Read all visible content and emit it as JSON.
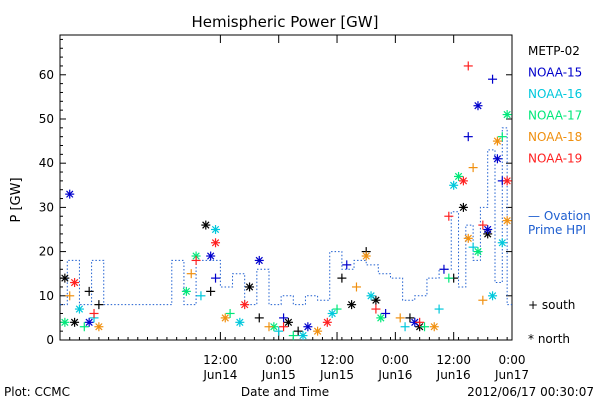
{
  "chart_data": {
    "type": "scatter",
    "title": "Hemispheric Power [GW]",
    "xlabel": "Date and Time",
    "ylabel": "P [GW]",
    "ylim": [
      0,
      69
    ],
    "xlim": [
      "2012-06-13 03:00",
      "2012-06-17 00:00"
    ],
    "grid": false,
    "legend_position": "right",
    "y_ticks": [
      0,
      10,
      20,
      30,
      40,
      50,
      60
    ],
    "x_ticks": [
      {
        "at": "2012-06-14 12:00",
        "time": "12:00",
        "date": "Jun14"
      },
      {
        "at": "2012-06-15 00:00",
        "time": "0:00",
        "date": "Jun15"
      },
      {
        "at": "2012-06-15 12:00",
        "time": "12:00",
        "date": "Jun15"
      },
      {
        "at": "2012-06-16 00:00",
        "time": "0:00",
        "date": "Jun16"
      },
      {
        "at": "2012-06-16 12:00",
        "time": "12:00",
        "date": "Jun16"
      },
      {
        "at": "2012-06-17 00:00",
        "time": "0:00",
        "date": "Jun17"
      }
    ],
    "series": [
      {
        "name": "METP-02",
        "color": "#000000",
        "points": [
          {
            "x": "2012-06-13 04:00",
            "y": 14,
            "hem": "north"
          },
          {
            "x": "2012-06-13 06:00",
            "y": 4,
            "hem": "north"
          },
          {
            "x": "2012-06-13 09:00",
            "y": 11,
            "hem": "south"
          },
          {
            "x": "2012-06-13 11:00",
            "y": 8,
            "hem": "south"
          },
          {
            "x": "2012-06-14 09:00",
            "y": 26,
            "hem": "north"
          },
          {
            "x": "2012-06-14 10:00",
            "y": 11,
            "hem": "south"
          },
          {
            "x": "2012-06-14 18:00",
            "y": 12,
            "hem": "north"
          },
          {
            "x": "2012-06-14 20:00",
            "y": 5,
            "hem": "south"
          },
          {
            "x": "2012-06-15 02:00",
            "y": 4,
            "hem": "north"
          },
          {
            "x": "2012-06-15 04:00",
            "y": 2,
            "hem": "south"
          },
          {
            "x": "2012-06-15 13:00",
            "y": 14,
            "hem": "south"
          },
          {
            "x": "2012-06-15 15:00",
            "y": 8,
            "hem": "north"
          },
          {
            "x": "2012-06-15 18:00",
            "y": 20,
            "hem": "south"
          },
          {
            "x": "2012-06-15 20:00",
            "y": 9,
            "hem": "north"
          },
          {
            "x": "2012-06-16 03:00",
            "y": 5,
            "hem": "south"
          },
          {
            "x": "2012-06-16 05:00",
            "y": 3,
            "hem": "north"
          },
          {
            "x": "2012-06-16 12:00",
            "y": 14,
            "hem": "south"
          },
          {
            "x": "2012-06-16 14:00",
            "y": 30,
            "hem": "north"
          },
          {
            "x": "2012-06-16 19:00",
            "y": 24,
            "hem": "north"
          }
        ]
      },
      {
        "name": "NOAA-15",
        "color": "#0000cc",
        "points": [
          {
            "x": "2012-06-13 05:00",
            "y": 33,
            "hem": "north"
          },
          {
            "x": "2012-06-13 09:00",
            "y": 4,
            "hem": "north"
          },
          {
            "x": "2012-06-14 10:00",
            "y": 19,
            "hem": "north"
          },
          {
            "x": "2012-06-14 11:00",
            "y": 14,
            "hem": "south"
          },
          {
            "x": "2012-06-14 20:00",
            "y": 18,
            "hem": "north"
          },
          {
            "x": "2012-06-15 01:00",
            "y": 5,
            "hem": "south"
          },
          {
            "x": "2012-06-15 06:00",
            "y": 3,
            "hem": "north"
          },
          {
            "x": "2012-06-15 14:00",
            "y": 17,
            "hem": "south"
          },
          {
            "x": "2012-06-15 22:00",
            "y": 6,
            "hem": "south"
          },
          {
            "x": "2012-06-16 04:00",
            "y": 4,
            "hem": "north"
          },
          {
            "x": "2012-06-16 10:00",
            "y": 16,
            "hem": "south"
          },
          {
            "x": "2012-06-16 15:00",
            "y": 46,
            "hem": "south"
          },
          {
            "x": "2012-06-16 17:00",
            "y": 53,
            "hem": "north"
          },
          {
            "x": "2012-06-16 19:00",
            "y": 25,
            "hem": "north"
          },
          {
            "x": "2012-06-16 20:00",
            "y": 59,
            "hem": "south"
          },
          {
            "x": "2012-06-16 21:00",
            "y": 41,
            "hem": "north"
          },
          {
            "x": "2012-06-16 22:00",
            "y": 36,
            "hem": "south"
          }
        ]
      },
      {
        "name": "NOAA-16",
        "color": "#00c8dc",
        "points": [
          {
            "x": "2012-06-13 07:00",
            "y": 7,
            "hem": "north"
          },
          {
            "x": "2012-06-13 10:00",
            "y": 5,
            "hem": "south"
          },
          {
            "x": "2012-06-14 08:00",
            "y": 10,
            "hem": "south"
          },
          {
            "x": "2012-06-14 11:00",
            "y": 25,
            "hem": "north"
          },
          {
            "x": "2012-06-14 16:00",
            "y": 4,
            "hem": "north"
          },
          {
            "x": "2012-06-15 00:00",
            "y": 2,
            "hem": "south"
          },
          {
            "x": "2012-06-15 05:00",
            "y": 1,
            "hem": "north"
          },
          {
            "x": "2012-06-15 11:00",
            "y": 6,
            "hem": "north"
          },
          {
            "x": "2012-06-15 19:00",
            "y": 10,
            "hem": "north"
          },
          {
            "x": "2012-06-16 02:00",
            "y": 3,
            "hem": "south"
          },
          {
            "x": "2012-06-16 09:00",
            "y": 7,
            "hem": "south"
          },
          {
            "x": "2012-06-16 12:00",
            "y": 35,
            "hem": "north"
          },
          {
            "x": "2012-06-16 16:00",
            "y": 21,
            "hem": "south"
          },
          {
            "x": "2012-06-16 20:00",
            "y": 10,
            "hem": "north"
          },
          {
            "x": "2012-06-16 22:00",
            "y": 22,
            "hem": "north"
          }
        ]
      },
      {
        "name": "NOAA-17",
        "color": "#00e87a",
        "points": [
          {
            "x": "2012-06-13 04:00",
            "y": 4,
            "hem": "north"
          },
          {
            "x": "2012-06-13 08:00",
            "y": 3,
            "hem": "south"
          },
          {
            "x": "2012-06-14 05:00",
            "y": 11,
            "hem": "north"
          },
          {
            "x": "2012-06-14 07:00",
            "y": 19,
            "hem": "north"
          },
          {
            "x": "2012-06-14 14:00",
            "y": 6,
            "hem": "south"
          },
          {
            "x": "2012-06-14 23:00",
            "y": 3,
            "hem": "north"
          },
          {
            "x": "2012-06-15 03:00",
            "y": 1,
            "hem": "south"
          },
          {
            "x": "2012-06-15 12:00",
            "y": 7,
            "hem": "south"
          },
          {
            "x": "2012-06-15 21:00",
            "y": 5,
            "hem": "north"
          },
          {
            "x": "2012-06-16 06:00",
            "y": 3,
            "hem": "south"
          },
          {
            "x": "2012-06-16 11:00",
            "y": 14,
            "hem": "south"
          },
          {
            "x": "2012-06-16 13:00",
            "y": 37,
            "hem": "north"
          },
          {
            "x": "2012-06-16 17:00",
            "y": 20,
            "hem": "north"
          },
          {
            "x": "2012-06-16 22:00",
            "y": 46,
            "hem": "south"
          },
          {
            "x": "2012-06-16 23:00",
            "y": 51,
            "hem": "north"
          }
        ]
      },
      {
        "name": "NOAA-18",
        "color": "#f09010",
        "points": [
          {
            "x": "2012-06-13 05:00",
            "y": 10,
            "hem": "south"
          },
          {
            "x": "2012-06-13 11:00",
            "y": 3,
            "hem": "north"
          },
          {
            "x": "2012-06-14 06:00",
            "y": 15,
            "hem": "south"
          },
          {
            "x": "2012-06-14 13:00",
            "y": 5,
            "hem": "north"
          },
          {
            "x": "2012-06-14 22:00",
            "y": 3,
            "hem": "south"
          },
          {
            "x": "2012-06-15 08:00",
            "y": 2,
            "hem": "north"
          },
          {
            "x": "2012-06-15 16:00",
            "y": 12,
            "hem": "south"
          },
          {
            "x": "2012-06-15 18:00",
            "y": 19,
            "hem": "north"
          },
          {
            "x": "2012-06-16 01:00",
            "y": 5,
            "hem": "south"
          },
          {
            "x": "2012-06-16 08:00",
            "y": 3,
            "hem": "north"
          },
          {
            "x": "2012-06-16 15:00",
            "y": 23,
            "hem": "north"
          },
          {
            "x": "2012-06-16 16:00",
            "y": 39,
            "hem": "south"
          },
          {
            "x": "2012-06-16 18:00",
            "y": 9,
            "hem": "south"
          },
          {
            "x": "2012-06-16 21:00",
            "y": 45,
            "hem": "north"
          },
          {
            "x": "2012-06-16 23:00",
            "y": 27,
            "hem": "north"
          }
        ]
      },
      {
        "name": "NOAA-19",
        "color": "#ff2020",
        "points": [
          {
            "x": "2012-06-13 06:00",
            "y": 13,
            "hem": "north"
          },
          {
            "x": "2012-06-13 10:00",
            "y": 6,
            "hem": "south"
          },
          {
            "x": "2012-06-14 07:00",
            "y": 18,
            "hem": "south"
          },
          {
            "x": "2012-06-14 11:00",
            "y": 22,
            "hem": "north"
          },
          {
            "x": "2012-06-14 17:00",
            "y": 8,
            "hem": "north"
          },
          {
            "x": "2012-06-15 01:00",
            "y": 3,
            "hem": "south"
          },
          {
            "x": "2012-06-15 10:00",
            "y": 4,
            "hem": "north"
          },
          {
            "x": "2012-06-15 20:00",
            "y": 7,
            "hem": "south"
          },
          {
            "x": "2012-06-16 05:00",
            "y": 4,
            "hem": "south"
          },
          {
            "x": "2012-06-16 11:00",
            "y": 28,
            "hem": "south"
          },
          {
            "x": "2012-06-16 14:00",
            "y": 36,
            "hem": "north"
          },
          {
            "x": "2012-06-16 15:00",
            "y": 62,
            "hem": "south"
          },
          {
            "x": "2012-06-16 18:00",
            "y": 26,
            "hem": "south"
          },
          {
            "x": "2012-06-16 23:00",
            "y": 36,
            "hem": "north"
          }
        ]
      }
    ],
    "ovation": {
      "name_line1": "— Ovation",
      "name_line2": "Prime HPI",
      "color": "#1f5fd0",
      "steps": [
        {
          "x": "2012-06-13 03:00",
          "y": 8
        },
        {
          "x": "2012-06-13 04:30",
          "y": 18
        },
        {
          "x": "2012-06-13 07:00",
          "y": 8
        },
        {
          "x": "2012-06-13 09:30",
          "y": 18
        },
        {
          "x": "2012-06-13 12:00",
          "y": 8
        },
        {
          "x": "2012-06-14 02:00",
          "y": 18
        },
        {
          "x": "2012-06-14 04:30",
          "y": 8
        },
        {
          "x": "2012-06-14 07:00",
          "y": 18
        },
        {
          "x": "2012-06-14 09:30",
          "y": 18
        },
        {
          "x": "2012-06-14 12:00",
          "y": 12
        },
        {
          "x": "2012-06-14 14:30",
          "y": 15
        },
        {
          "x": "2012-06-14 17:00",
          "y": 8
        },
        {
          "x": "2012-06-14 19:30",
          "y": 16
        },
        {
          "x": "2012-06-14 22:00",
          "y": 8
        },
        {
          "x": "2012-06-15 00:30",
          "y": 10
        },
        {
          "x": "2012-06-15 03:00",
          "y": 8
        },
        {
          "x": "2012-06-15 05:30",
          "y": 10
        },
        {
          "x": "2012-06-15 08:00",
          "y": 9
        },
        {
          "x": "2012-06-15 10:30",
          "y": 20
        },
        {
          "x": "2012-06-15 13:00",
          "y": 16
        },
        {
          "x": "2012-06-15 15:30",
          "y": 18
        },
        {
          "x": "2012-06-15 18:00",
          "y": 17
        },
        {
          "x": "2012-06-15 20:30",
          "y": 15
        },
        {
          "x": "2012-06-15 23:00",
          "y": 14
        },
        {
          "x": "2012-06-16 01:30",
          "y": 9
        },
        {
          "x": "2012-06-16 04:00",
          "y": 10
        },
        {
          "x": "2012-06-16 06:30",
          "y": 14
        },
        {
          "x": "2012-06-16 09:00",
          "y": 16
        },
        {
          "x": "2012-06-16 11:30",
          "y": 29
        },
        {
          "x": "2012-06-16 13:00",
          "y": 12
        },
        {
          "x": "2012-06-16 14:30",
          "y": 26
        },
        {
          "x": "2012-06-16 16:00",
          "y": 18
        },
        {
          "x": "2012-06-16 17:30",
          "y": 30
        },
        {
          "x": "2012-06-16 19:00",
          "y": 43
        },
        {
          "x": "2012-06-16 20:30",
          "y": 13
        },
        {
          "x": "2012-06-16 22:00",
          "y": 48
        },
        {
          "x": "2012-06-16 23:00",
          "y": 8
        },
        {
          "x": "2012-06-17 00:00",
          "y": 8
        }
      ]
    },
    "symbol_legend": {
      "south": "+ south",
      "north": "* north"
    },
    "footer": {
      "left": "Plot: CCMC",
      "right": "2012/06/17 00:30:07"
    }
  }
}
